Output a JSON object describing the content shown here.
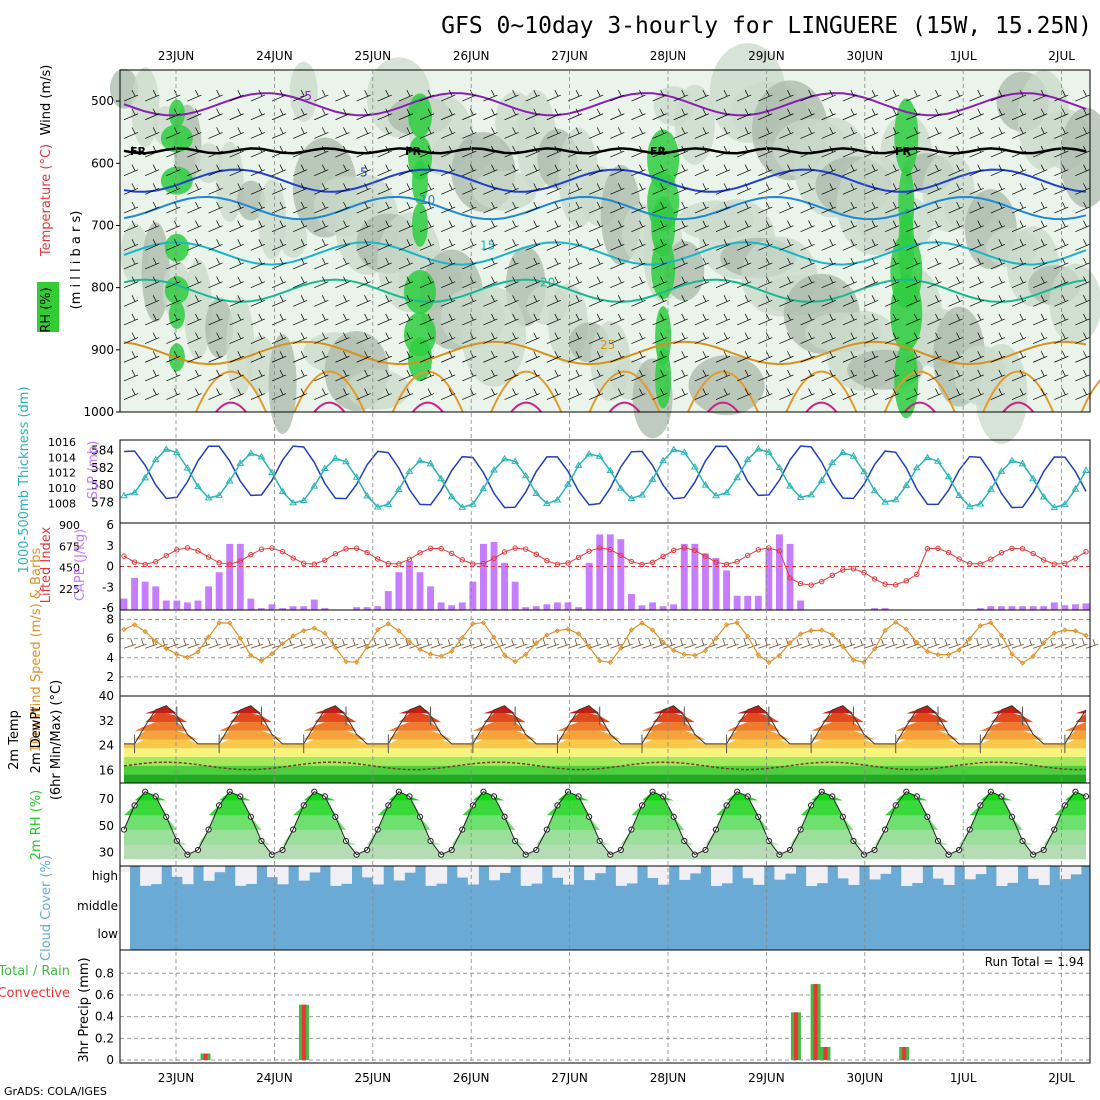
{
  "title": "GFS 0~10day 3-hourly for LINGUERE (15W, 15.25N)",
  "footer": "GrADS: COLA/IGES",
  "colors": {
    "rh_light": "#eaf4ea",
    "rh_mid": "#c9d9c9",
    "rh_dark": "#a9b9a9",
    "rh_green": "#2ecc40",
    "slp": "#1f3fbf",
    "thickness": "#29b5b5",
    "cape": "#c77dff",
    "lifted_index": "#e0393e",
    "wind_speed": "#e0922a",
    "barb": "#6b4a2a",
    "rh2m": "#22cc22",
    "cloud_blue": "#6aaad4",
    "cloud_clear": "#f0eff5",
    "precip_total": "#44bb44",
    "precip_conv": "#ee3333"
  },
  "chart_data": {
    "type": "meteogram",
    "x_dates": [
      "23JUN",
      "24JUN",
      "25JUN",
      "26JUN",
      "27JUN",
      "28JUN",
      "29JUN",
      "30JUN",
      "1JUL",
      "2JUL"
    ],
    "time_step_hours": 3,
    "panels": [
      {
        "id": "upper_air",
        "type": "heatmap",
        "labels": [
          "RH (%)",
          "Temperature (°C)",
          "Wind (m/s)",
          "(m i l l i b a r s)"
        ],
        "yticks": [
          500,
          600,
          700,
          800,
          900,
          1000
        ],
        "ylim": [
          1000,
          450
        ],
        "freezing_label": "FR",
        "temperature_contours": [
          "-5",
          "5",
          "10",
          "15",
          "20",
          "25"
        ],
        "rh_contour_labels": [
          "50",
          "30"
        ]
      },
      {
        "id": "slp_thickness",
        "type": "line",
        "labels": [
          "1000-500mb Thickness (dm)",
          "SLP (mb)"
        ],
        "left_ticks": [
          578,
          580,
          582,
          584
        ],
        "right_ticks": [
          1008,
          1010,
          1012,
          1014,
          1016
        ],
        "series": [
          {
            "name": "SLP (mb)",
            "range_min": 1007.5,
            "range_max": 1015.5
          },
          {
            "name": "1000-500mb Thickness (dm)",
            "range_min": 577.5,
            "range_max": 584.5
          }
        ]
      },
      {
        "id": "cape_li",
        "type": "bar",
        "labels": [
          "Lifted Index",
          "CAPE (J/kg)"
        ],
        "left_ticks": [
          "6",
          "3",
          "0",
          "-3",
          "-6"
        ],
        "right_ticks": [
          225,
          450,
          675,
          900
        ],
        "cape_values": [
          120,
          340,
          300,
          250,
          100,
          100,
          80,
          100,
          250,
          400,
          700,
          700,
          120,
          20,
          60,
          20,
          40,
          40,
          110,
          20,
          0,
          0,
          30,
          30,
          40,
          200,
          400,
          520,
          400,
          250,
          80,
          50,
          80,
          300,
          700,
          720,
          500,
          300,
          30,
          40,
          60,
          80,
          80,
          30,
          500,
          800,
          800,
          750,
          170,
          50,
          80,
          40,
          60,
          700,
          700,
          600,
          550,
          420,
          150,
          150,
          150,
          650,
          800,
          700,
          100,
          0,
          0,
          0,
          0,
          0,
          0,
          20,
          20,
          0,
          0,
          0,
          0,
          0,
          0,
          0,
          0,
          20,
          40,
          40,
          40,
          40,
          40,
          40,
          80,
          50,
          60,
          70,
          80
        ]
      },
      {
        "id": "wind10m",
        "type": "line",
        "labels": [
          "10m Wind Speed (m/s) & Barbs"
        ],
        "yticks": [
          2,
          4,
          6,
          8
        ],
        "ylim": [
          0,
          9
        ]
      },
      {
        "id": "temp2m",
        "type": "area",
        "labels": [
          "2m Temp",
          "2m DewPt",
          "(6hr Min/Max) (°C)"
        ],
        "yticks": [
          16,
          24,
          32,
          40
        ],
        "ylim": [
          12,
          40
        ],
        "band_colors": [
          "#22aa22",
          "#4ccf3d",
          "#a6e85c",
          "#f6f47a",
          "#f7c84a",
          "#f4a23a",
          "#ee7a2a",
          "#e04a1e",
          "#c41e14",
          "#8b0e0e"
        ]
      },
      {
        "id": "rh2m",
        "type": "area",
        "labels": [
          "2m RH (%)"
        ],
        "yticks": [
          30,
          50,
          70
        ],
        "ylim": [
          20,
          82
        ]
      },
      {
        "id": "cloud",
        "type": "heatmap",
        "labels": [
          "Cloud Cover (%)"
        ],
        "levels": [
          "high",
          "middle",
          "low"
        ]
      },
      {
        "id": "precip",
        "type": "bar",
        "labels": [
          "Total / Rain",
          "Convective",
          "3hr Precip (mm)"
        ],
        "yticks": [
          0,
          0.2,
          0.4,
          0.6,
          0.8
        ],
        "ylim": [
          0,
          0.95
        ],
        "run_total_label": "Run Total = 1.94",
        "bars": [
          {
            "date_offset": 0.3,
            "value": 0.06
          },
          {
            "date_offset": 1.3,
            "value": 0.51
          },
          {
            "date_offset": 6.3,
            "value": 0.44
          },
          {
            "date_offset": 6.5,
            "value": 0.7
          },
          {
            "date_offset": 6.6,
            "value": 0.12
          },
          {
            "date_offset": 7.4,
            "value": 0.12
          }
        ]
      }
    ]
  }
}
